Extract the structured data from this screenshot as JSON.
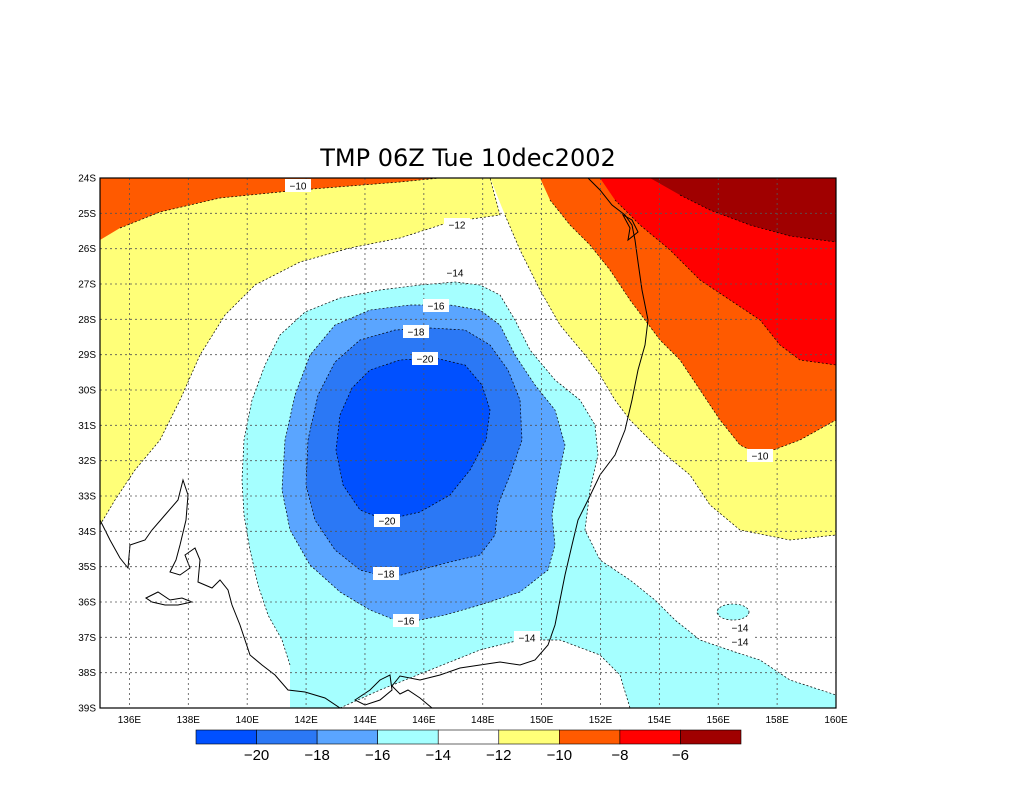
{
  "title": "TMP 06Z Tue 10dec2002",
  "lat_labels": [
    "24S",
    "25S",
    "26S",
    "27S",
    "28S",
    "29S",
    "30S",
    "31S",
    "32S",
    "33S",
    "34S",
    "35S",
    "36S",
    "37S",
    "38S",
    "39S"
  ],
  "lon_labels": [
    "136E",
    "138E",
    "140E",
    "142E",
    "144E",
    "146E",
    "148E",
    "150E",
    "152E",
    "154E",
    "156E",
    "158E",
    "160E"
  ],
  "colors": {
    "lt_m20": "#0050ff",
    "m20_m18": "#2b78f5",
    "m18_m16": "#5aa5ff",
    "m16_m14": "#a5ffff",
    "m14_m12": "#ffffff",
    "m12_m10": "#ffff78",
    "m10_m8": "#ff5a00",
    "m8_m6": "#ff0000",
    "gt_m6": "#a00000"
  },
  "colorbar": {
    "colors": [
      "#0050ff",
      "#2b78f5",
      "#5aa5ff",
      "#a5ffff",
      "#ffffff",
      "#ffff78",
      "#ff5a00",
      "#ff0000",
      "#a00000"
    ],
    "labels": [
      "−20",
      "−18",
      "−16",
      "−14",
      "−12",
      "−10",
      "−8",
      "−6"
    ]
  },
  "contour_labels": [
    {
      "text": "−10",
      "value": -10
    },
    {
      "text": "−12",
      "value": -12
    },
    {
      "text": "−14",
      "value": -14
    },
    {
      "text": "−16",
      "value": -16
    },
    {
      "text": "−18",
      "value": -18
    },
    {
      "text": "−20",
      "value": -20
    },
    {
      "text": "−10",
      "value": -10
    },
    {
      "text": "−20",
      "value": -20
    },
    {
      "text": "−18",
      "value": -18
    },
    {
      "text": "−16",
      "value": -16
    },
    {
      "text": "−14",
      "value": -14
    },
    {
      "text": "−14",
      "value": -14
    },
    {
      "text": "−14",
      "value": -14
    }
  ]
}
